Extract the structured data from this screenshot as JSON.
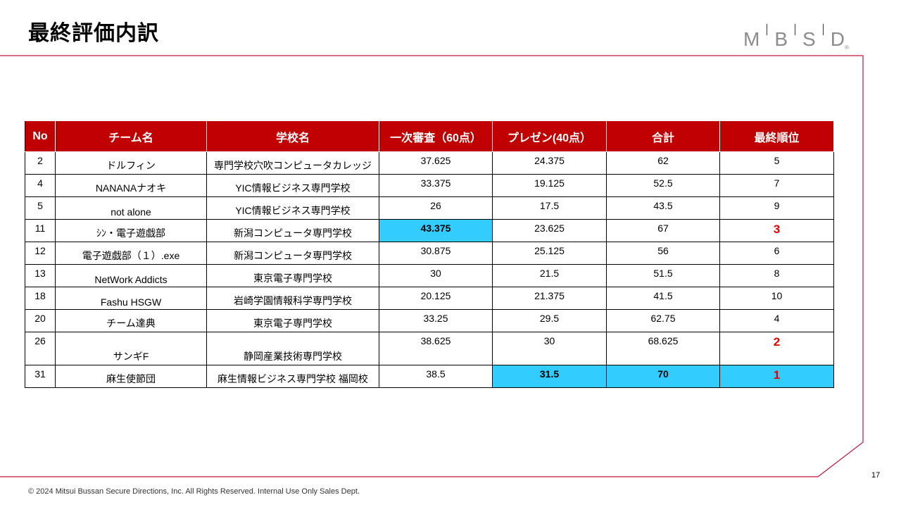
{
  "title": "最終評価内訳",
  "logo": {
    "letters": [
      "M",
      "B",
      "S",
      "D"
    ],
    "mark": "®"
  },
  "table": {
    "headers": [
      "No",
      "チーム名",
      "学校名",
      "一次審査（60点）",
      "プレゼン(40点）",
      "合計",
      "最終順位"
    ],
    "rows": [
      {
        "no": "2",
        "team": "ドルフィン",
        "school": "専門学校穴吹コンピュータカレッジ",
        "first": "37.625",
        "presen": "24.375",
        "total": "62",
        "rank": "5"
      },
      {
        "no": "4",
        "team": "NANANAナオキ",
        "school": "YIC情報ビジネス専門学校",
        "first": "33.375",
        "presen": "19.125",
        "total": "52.5",
        "rank": "7"
      },
      {
        "no": "5",
        "team": "not alone",
        "school": "YIC情報ビジネス専門学校",
        "first": "26",
        "presen": "17.5",
        "total": "43.5",
        "rank": "9"
      },
      {
        "no": "11",
        "team": "ｼﾝ・電子遊戯部",
        "school": "新潟コンピュータ専門学校",
        "first": "43.375",
        "presen": "23.625",
        "total": "67",
        "rank": "3"
      },
      {
        "no": "12",
        "team": "電子遊戯部（１）.exe",
        "school": "新潟コンピュータ専門学校",
        "first": "30.875",
        "presen": "25.125",
        "total": "56",
        "rank": "6"
      },
      {
        "no": "13",
        "team": "NetWork Addicts",
        "school": "東京電子専門学校",
        "first": "30",
        "presen": "21.5",
        "total": "51.5",
        "rank": "8"
      },
      {
        "no": "18",
        "team": "Fashu HSGW",
        "school": "岩崎学園情報科学専門学校",
        "first": "20.125",
        "presen": "21.375",
        "total": "41.5",
        "rank": "10"
      },
      {
        "no": "20",
        "team": "チーム達典",
        "school": "東京電子専門学校",
        "first": "33.25",
        "presen": "29.5",
        "total": "62.75",
        "rank": "4"
      },
      {
        "no": "26",
        "team": "サンギF",
        "school": "静岡産業技術専門学校",
        "first": "38.625",
        "presen": "30",
        "total": "68.625",
        "rank": "2"
      },
      {
        "no": "31",
        "team": "麻生使節団",
        "school": "麻生情報ビジネス専門学校 福岡校",
        "first": "38.5",
        "presen": "31.5",
        "total": "70",
        "rank": "1"
      }
    ]
  },
  "page_number": "17",
  "footer": "© 2024   Mitsui Bussan Secure Directions, Inc.  All Rights Reserved.  Internal Use Only  Sales Dept.",
  "colors": {
    "header_bg": "#c00000",
    "highlight": "#33ccff",
    "rank_top": "#e00000"
  }
}
